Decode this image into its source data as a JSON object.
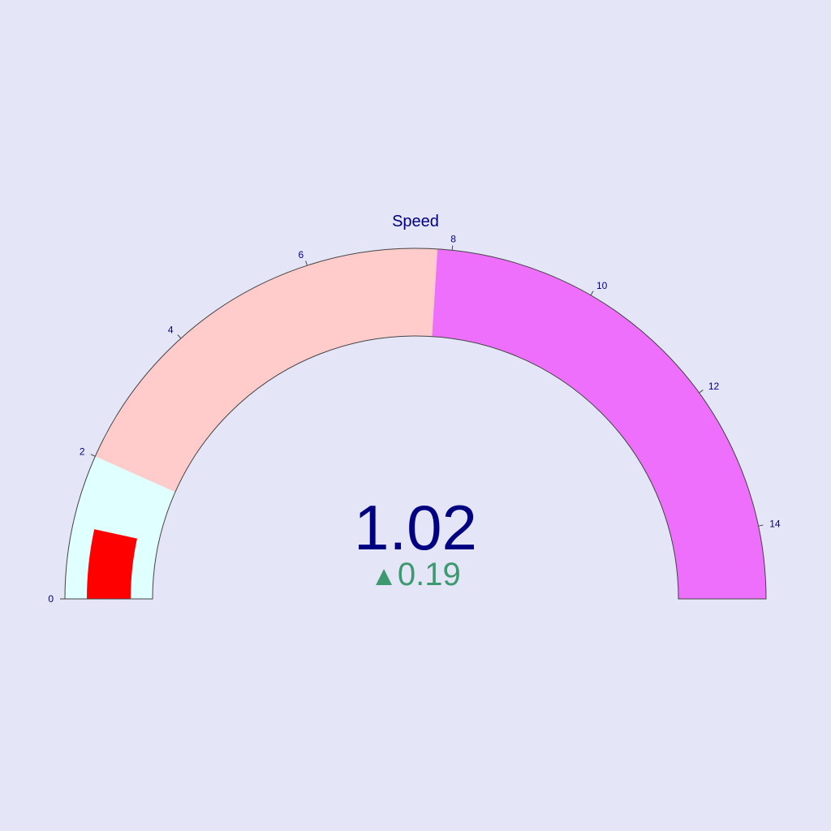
{
  "chart_data": {
    "type": "gauge",
    "title": "Speed",
    "value": 1.02,
    "value_text": "1.02",
    "delta": {
      "value": 0.19,
      "arrow": "▲",
      "text": "0.19",
      "color": "#3d9970"
    },
    "axis": {
      "range": [
        0,
        15
      ],
      "tickvals": [
        0,
        2,
        4,
        6,
        8,
        10,
        12,
        14
      ],
      "ticktext": [
        "0",
        "2",
        "4",
        "6",
        "8",
        "10",
        "12",
        "14"
      ]
    },
    "steps": [
      {
        "range": [
          0,
          2
        ],
        "color": "#e0ffff"
      },
      {
        "range": [
          2,
          7.8
        ],
        "color": "#ffcccb"
      },
      {
        "range": [
          7.8,
          15
        ],
        "color": "#ee6ffc"
      }
    ],
    "bar": {
      "value": 1.02,
      "color": "#ff0000"
    },
    "colors": {
      "background": "#e5e5f8",
      "text": "#000080",
      "outline": "#444444"
    }
  }
}
